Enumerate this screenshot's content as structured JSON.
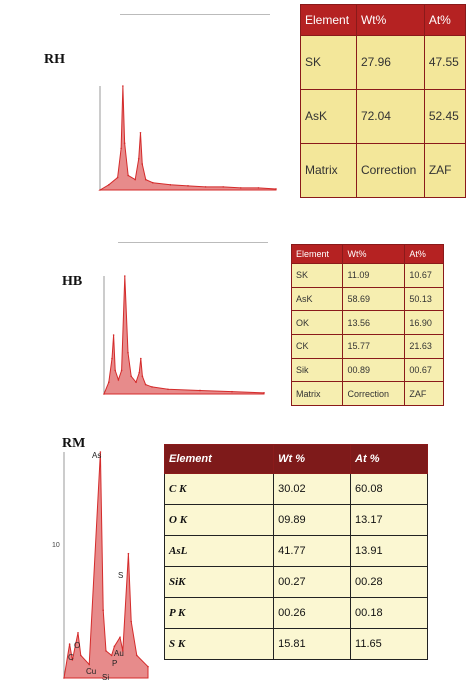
{
  "panels": {
    "rh_label": "RH",
    "hb_label": "HB",
    "rm_label": "RM"
  },
  "colors": {
    "spectrum": "#d42b2b",
    "table_header_red": "#b52222",
    "table_body_yellow": "#f3e79a"
  },
  "chart_data": [
    {
      "type": "line",
      "panel": "RH",
      "title": "",
      "xlabel": "",
      "ylabel": "",
      "x": [
        0.0,
        0.5,
        1.0,
        1.2,
        1.3,
        1.4,
        1.6,
        2.0,
        2.2,
        2.3,
        2.4,
        2.6,
        3.0,
        4.0,
        5.0,
        6.0,
        7.0,
        8.0,
        9.0,
        10.0
      ],
      "y": [
        0,
        5,
        12,
        40,
        100,
        45,
        14,
        10,
        30,
        55,
        25,
        10,
        7,
        5,
        4,
        3,
        3,
        2,
        2,
        1
      ]
    },
    {
      "type": "line",
      "panel": "HB",
      "title": "",
      "xlabel": "",
      "ylabel": "",
      "x": [
        0.0,
        0.3,
        0.5,
        0.6,
        0.7,
        0.9,
        1.1,
        1.3,
        1.5,
        1.7,
        2.0,
        2.2,
        2.3,
        2.4,
        2.6,
        3.0,
        4.0,
        6.0,
        8.0,
        10.0
      ],
      "y": [
        0,
        10,
        30,
        50,
        20,
        12,
        20,
        100,
        35,
        15,
        10,
        18,
        30,
        15,
        8,
        6,
        4,
        3,
        2,
        1
      ]
    },
    {
      "type": "line",
      "panel": "RM",
      "title": "",
      "xlabel": "",
      "ylabel": "",
      "x": [
        0.0,
        0.2,
        0.3,
        0.5,
        0.6,
        0.9,
        1.3,
        1.4,
        1.5,
        1.7,
        1.8,
        2.0,
        2.1,
        2.3,
        2.4,
        2.6,
        3.0
      ],
      "y": [
        0,
        15,
        8,
        20,
        10,
        6,
        100,
        30,
        12,
        10,
        14,
        18,
        12,
        55,
        25,
        10,
        5
      ],
      "peak_labels": [
        "C",
        "O",
        "Cu",
        "As",
        "Si",
        "P",
        "S",
        "Au"
      ],
      "tick_label": "10"
    }
  ],
  "tables": {
    "rh": {
      "headers": [
        "Element",
        "Wt%",
        "At%"
      ],
      "rows": [
        [
          "SK",
          "27.96",
          "47.55"
        ],
        [
          "AsK",
          "72.04",
          "52.45"
        ],
        [
          "Matrix",
          "Correction",
          "ZAF"
        ]
      ]
    },
    "hb": {
      "headers": [
        "Element",
        "Wt%",
        "At%"
      ],
      "rows": [
        [
          "SK",
          "11.09",
          "10.67"
        ],
        [
          "AsK",
          "58.69",
          "50.13"
        ],
        [
          "OK",
          "13.56",
          "16.90"
        ],
        [
          "CK",
          "15.77",
          "21.63"
        ],
        [
          "Sik",
          "00.89",
          "00.67"
        ],
        [
          "Matrix",
          "Correction",
          "ZAF"
        ]
      ]
    },
    "rm": {
      "headers": [
        "Element",
        "Wt %",
        "At %"
      ],
      "rows": [
        [
          "C K",
          "30.02",
          "60.08"
        ],
        [
          "O K",
          "09.89",
          "13.17"
        ],
        [
          "AsL",
          "41.77",
          "13.91"
        ],
        [
          "SiK",
          "00.27",
          "00.28"
        ],
        [
          "P K",
          "00.26",
          "00.18"
        ],
        [
          "S K",
          "15.81",
          "11.65"
        ]
      ]
    }
  }
}
